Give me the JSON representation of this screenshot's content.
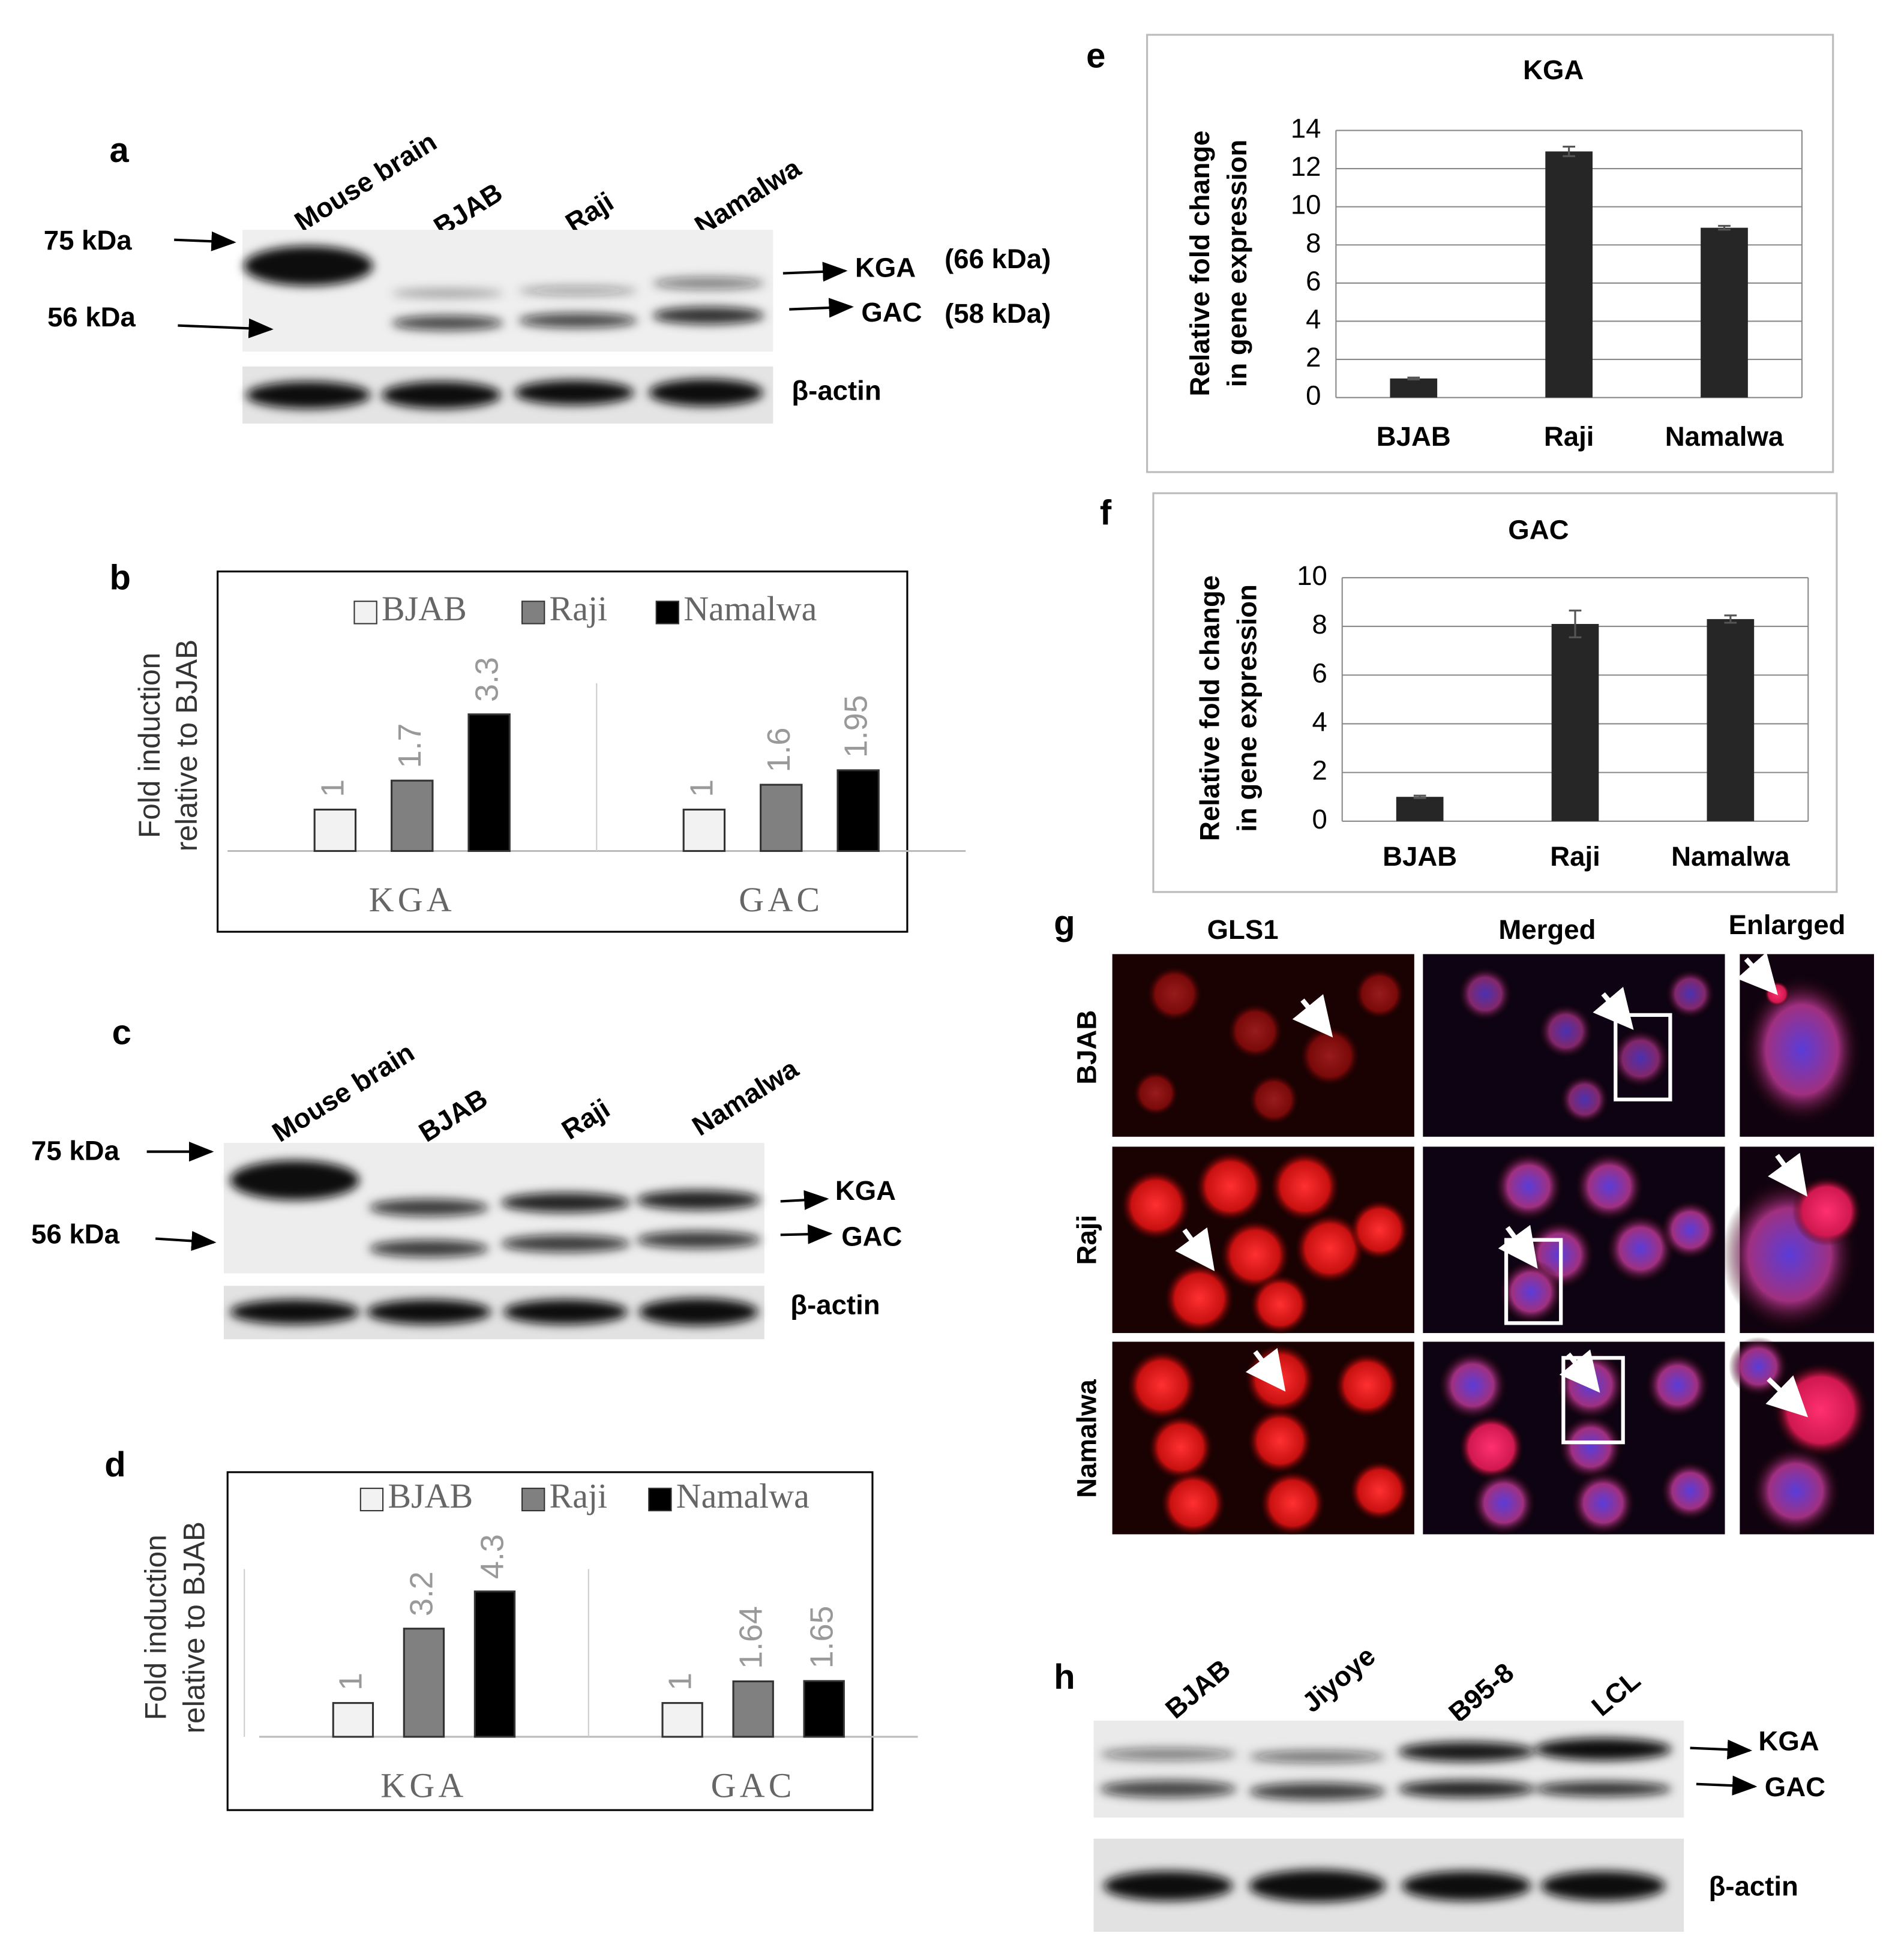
{
  "blots": {
    "a": {
      "label": "a",
      "lanes": [
        "Mouse brain",
        "BJAB",
        "Raji",
        "Namalwa"
      ],
      "markers": [
        "75 kDa",
        "56 kDa"
      ],
      "bands": [
        "KGA",
        "GAC"
      ],
      "band_sizes": [
        "(66 kDa)",
        "(58 kDa)"
      ],
      "loading": "β-actin"
    },
    "c": {
      "label": "c",
      "lanes": [
        "Mouse brain",
        "BJAB",
        "Raji",
        "Namalwa"
      ],
      "markers": [
        "75 kDa",
        "56 kDa"
      ],
      "bands": [
        "KGA",
        "GAC"
      ],
      "loading": "β-actin"
    },
    "h": {
      "label": "h",
      "lanes": [
        "BJAB",
        "Jiyoye",
        "B95-8",
        "LCL"
      ],
      "bands": [
        "KGA",
        "GAC"
      ],
      "loading": "β-actin"
    }
  },
  "microscopy": {
    "label": "g",
    "columns": [
      "GLS1",
      "Merged",
      "Enlarged"
    ],
    "rows": [
      "BJAB",
      "Raji",
      "Namalwa"
    ]
  },
  "chart_data": [
    {
      "type": "grouped-bar",
      "panel": "b",
      "ylabel": [
        "Fold induction",
        "relative to BJAB"
      ],
      "categories": [
        "KGA",
        "GAC"
      ],
      "series": [
        {
          "name": "BJAB",
          "color": "#f2f2f2",
          "values": [
            1,
            1
          ]
        },
        {
          "name": "Raji",
          "color": "#808080",
          "values": [
            1.7,
            1.6
          ]
        },
        {
          "name": "Namalwa",
          "color": "#000000",
          "values": [
            3.3,
            1.95
          ]
        }
      ]
    },
    {
      "type": "grouped-bar",
      "panel": "d",
      "ylabel": [
        "Fold induction",
        "relative to BJAB"
      ],
      "categories": [
        "KGA",
        "GAC"
      ],
      "series": [
        {
          "name": "BJAB",
          "color": "#f2f2f2",
          "values": [
            1,
            1
          ]
        },
        {
          "name": "Raji",
          "color": "#808080",
          "values": [
            3.2,
            1.64
          ]
        },
        {
          "name": "Namalwa",
          "color": "#000000",
          "values": [
            4.3,
            1.65
          ]
        }
      ]
    },
    {
      "type": "errorbar",
      "panel": "e",
      "title": "KGA",
      "ylabel": [
        "Relative fold change",
        "in gene expression"
      ],
      "categories": [
        "BJAB",
        "Raji",
        "Namalwa"
      ],
      "values": [
        1,
        12.9,
        8.9
      ],
      "errors": [
        0.05,
        0.25,
        0.1
      ],
      "color": "#262626",
      "ylim": [
        0,
        14
      ],
      "yticks": [
        0,
        2,
        4,
        6,
        8,
        10,
        12,
        14
      ],
      "grid": true
    },
    {
      "type": "errorbar",
      "panel": "f",
      "title": "GAC",
      "ylabel": [
        "Relative fold change",
        "in gene expression"
      ],
      "categories": [
        "BJAB",
        "Raji",
        "Namalwa"
      ],
      "values": [
        1,
        8.1,
        8.3
      ],
      "errors": [
        0.05,
        0.55,
        0.15
      ],
      "color": "#262626",
      "ylim": [
        0,
        10
      ],
      "yticks": [
        0,
        2,
        4,
        6,
        8,
        10
      ],
      "grid": true
    }
  ]
}
